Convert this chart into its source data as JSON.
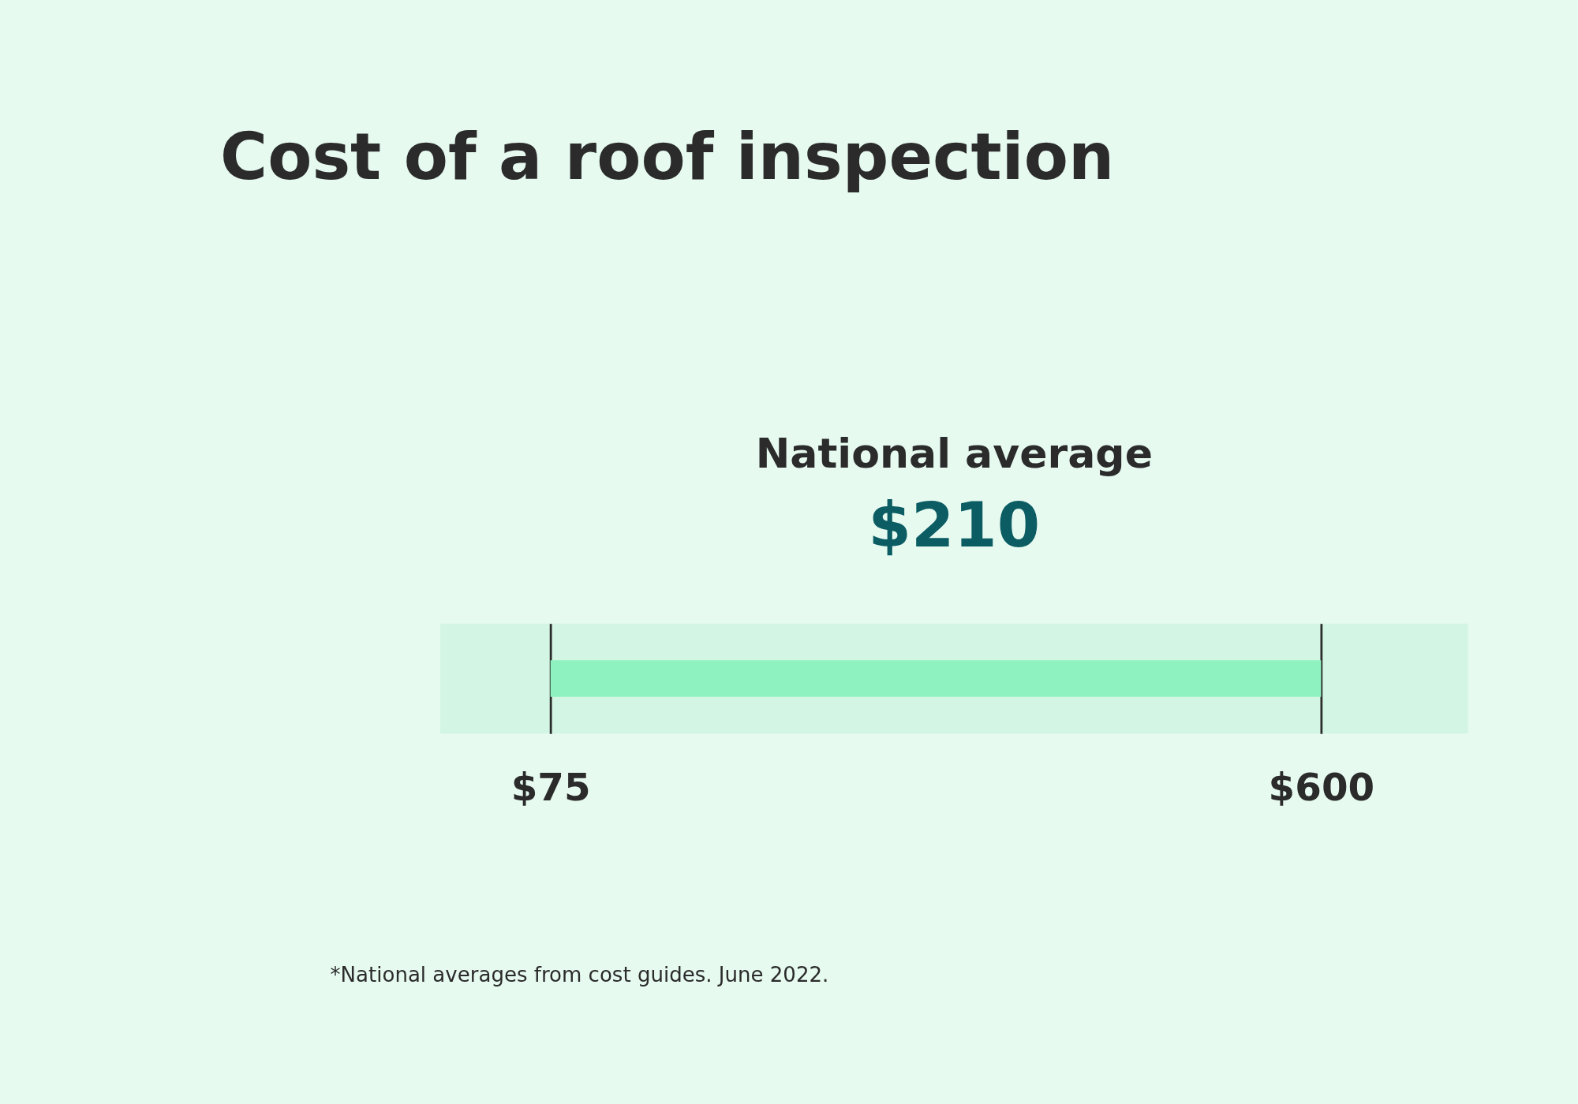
{
  "chart_data": {
    "type": "bar",
    "title": "Cost of a roof inspection",
    "orientation": "horizontal",
    "categories": [
      null
    ],
    "base": [
      75
    ],
    "values": [
      525
    ],
    "color": "#8ef2c0",
    "xlim": [
      0,
      700
    ],
    "xticks": [
      {
        "value": 75,
        "label": "$75"
      },
      {
        "value": 600,
        "label": "$600"
      }
    ],
    "grid": "x",
    "tick_labels": "x",
    "annotations": [
      "National average",
      "$210",
      "*National averages from cost guides. June 2022."
    ]
  }
}
